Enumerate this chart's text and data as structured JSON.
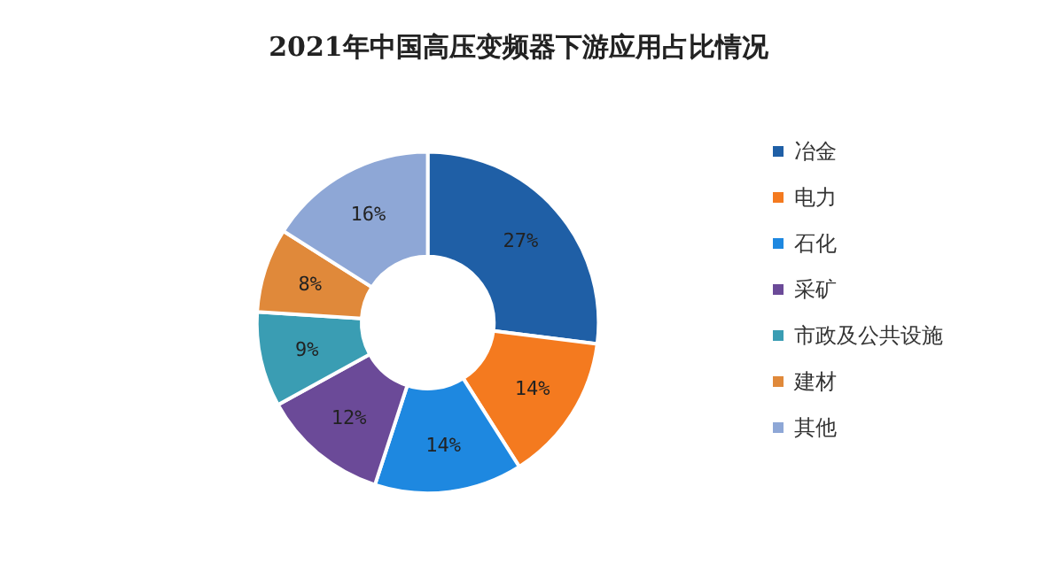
{
  "chart_data": {
    "type": "donut",
    "title": "2021年中国高压变频器下游应用占比情况",
    "categories": [
      "冶金",
      "电力",
      "石化",
      "采矿",
      "市政及公共设施",
      "建材",
      "其他"
    ],
    "values": [
      27,
      14,
      14,
      12,
      9,
      8,
      16
    ],
    "value_labels": [
      "27%",
      "14%",
      "14%",
      "12%",
      "9%",
      "8%",
      "16%"
    ],
    "colors": [
      "#1f5fa6",
      "#f47a1f",
      "#1e88e0",
      "#6b4a98",
      "#3a9db3",
      "#e0893a",
      "#8ea7d6"
    ],
    "legend": "right"
  }
}
